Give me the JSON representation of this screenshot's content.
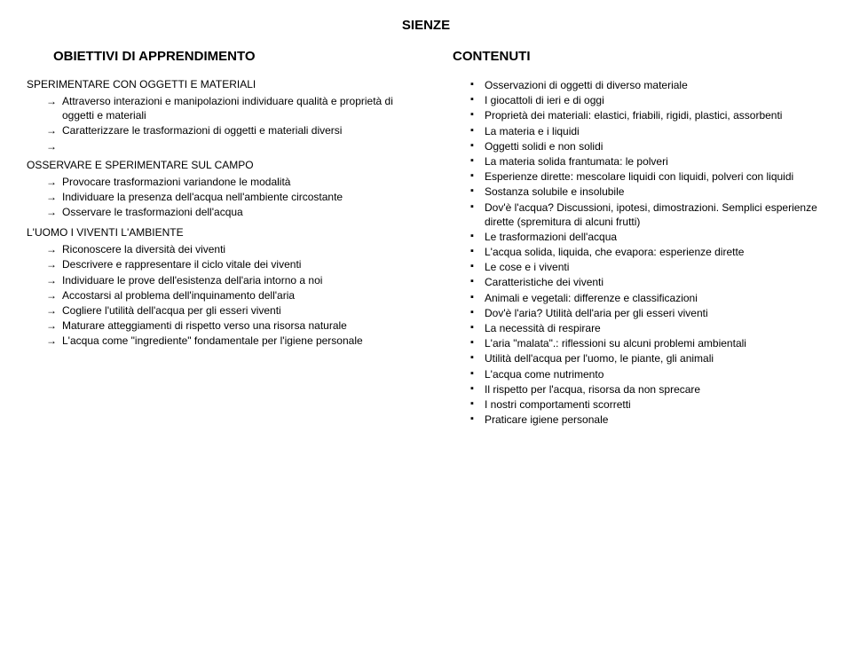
{
  "title": "SIENZE",
  "left": {
    "header": "OBIETTIVI DI APPRENDIMENTO",
    "sections": [
      {
        "heading": "SPERIMENTARE CON OGGETTI E MATERIALI",
        "items": [
          "Attraverso interazioni e manipolazioni individuare qualità e proprietà di oggetti e materiali",
          "Caratterizzare le trasformazioni di oggetti e materiali diversi",
          ""
        ]
      },
      {
        "heading": "OSSERVARE E SPERIMENTARE SUL CAMPO",
        "items": [
          "Provocare trasformazioni variandone le modalità",
          "Individuare la presenza dell'acqua nell'ambiente circostante",
          "Osservare le trasformazioni dell'acqua"
        ]
      },
      {
        "heading": "L'UOMO I VIVENTI L'AMBIENTE",
        "items": [
          "Riconoscere la diversità dei viventi",
          "Descrivere e rappresentare il ciclo vitale dei viventi",
          "Individuare le prove dell'esistenza dell'aria intorno a noi",
          "Accostarsi al problema dell'inquinamento dell'aria",
          "Cogliere l'utilità dell'acqua per gli esseri viventi",
          "Maturare atteggiamenti di rispetto verso una risorsa naturale",
          "L'acqua come \"ingrediente\" fondamentale per l'igiene personale"
        ]
      }
    ]
  },
  "right": {
    "header": "CONTENUTI",
    "items": [
      "Osservazioni di oggetti di diverso materiale",
      "I giocattoli di ieri e di oggi",
      "Proprietà dei materiali: elastici, friabili, rigidi, plastici, assorbenti",
      "La materia e i liquidi",
      "Oggetti solidi e non solidi",
      "La materia solida frantumata: le polveri",
      "Esperienze dirette: mescolare liquidi con liquidi, polveri con liquidi",
      "Sostanza solubile e insolubile",
      "Dov'è l'acqua? Discussioni, ipotesi, dimostrazioni. Semplici esperienze dirette (spremitura di alcuni frutti)",
      "Le trasformazioni dell'acqua",
      "L'acqua solida, liquida, che evapora: esperienze dirette",
      "Le cose e i viventi",
      "Caratteristiche dei viventi",
      "Animali e vegetali: differenze e classificazioni",
      "Dov'è l'aria?  Utilità dell'aria per gli esseri viventi",
      "La necessità di respirare",
      "L'aria \"malata\".: riflessioni su alcuni problemi ambientali",
      "Utilità dell'acqua per l'uomo, le piante, gli animali",
      "L'acqua come nutrimento",
      "Il rispetto per l'acqua, risorsa da non sprecare",
      "I nostri comportamenti scorretti",
      "Praticare igiene personale"
    ]
  }
}
